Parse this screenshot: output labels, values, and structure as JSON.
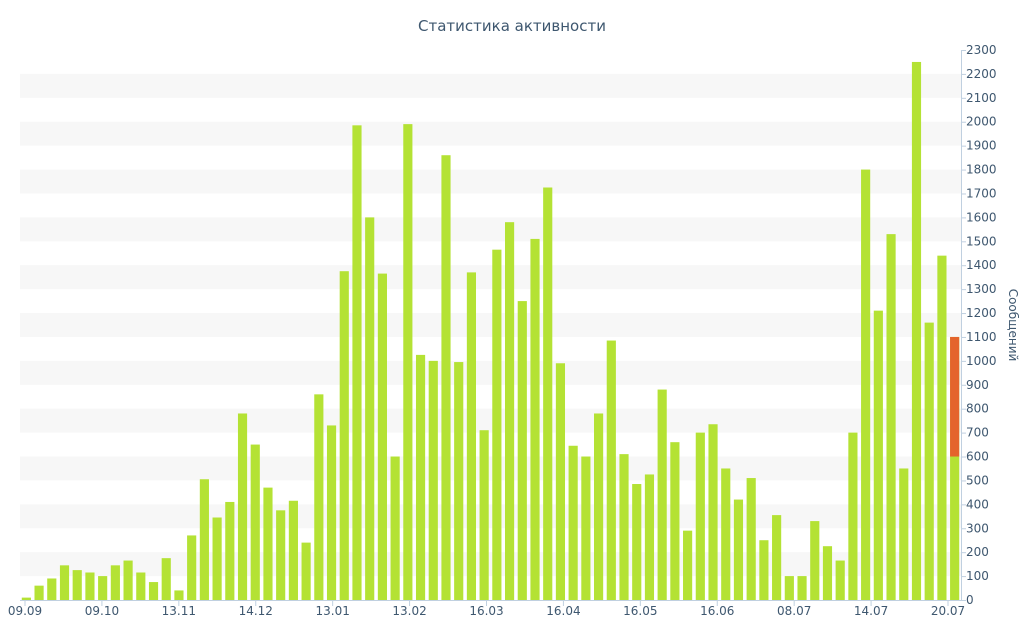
{
  "chart_data": {
    "type": "bar",
    "title": "Статистика активности",
    "ylabel": "Сообщений",
    "xlabel": "",
    "ylim": [
      0,
      2300
    ],
    "y_tick_step": 100,
    "grid": "horizontal-bands",
    "x_tick_labels": [
      "09.09",
      "09.10",
      "13.11",
      "14.12",
      "13.01",
      "13.02",
      "16.03",
      "16.04",
      "16.05",
      "16.06",
      "08.07",
      "14.07",
      "20.07"
    ],
    "bar_color": "#b4e234",
    "highlight_color": "#e4642c",
    "values": [
      10,
      60,
      90,
      145,
      125,
      115,
      100,
      145,
      165,
      115,
      75,
      175,
      40,
      270,
      505,
      345,
      410,
      780,
      650,
      470,
      375,
      415,
      240,
      860,
      730,
      1375,
      1985,
      1600,
      1365,
      600,
      1990,
      1025,
      1000,
      1860,
      995,
      1370,
      710,
      1465,
      1580,
      1250,
      1510,
      1725,
      990,
      645,
      600,
      780,
      1085,
      610,
      485,
      525,
      880,
      660,
      290,
      700,
      735,
      550,
      420,
      510,
      250,
      355,
      100,
      100,
      330,
      225,
      165,
      700,
      1800,
      1210,
      1530,
      550,
      2250,
      1160,
      1440,
      1100
    ],
    "highlight": {
      "index": 73,
      "from": 600,
      "to": 1100
    }
  }
}
